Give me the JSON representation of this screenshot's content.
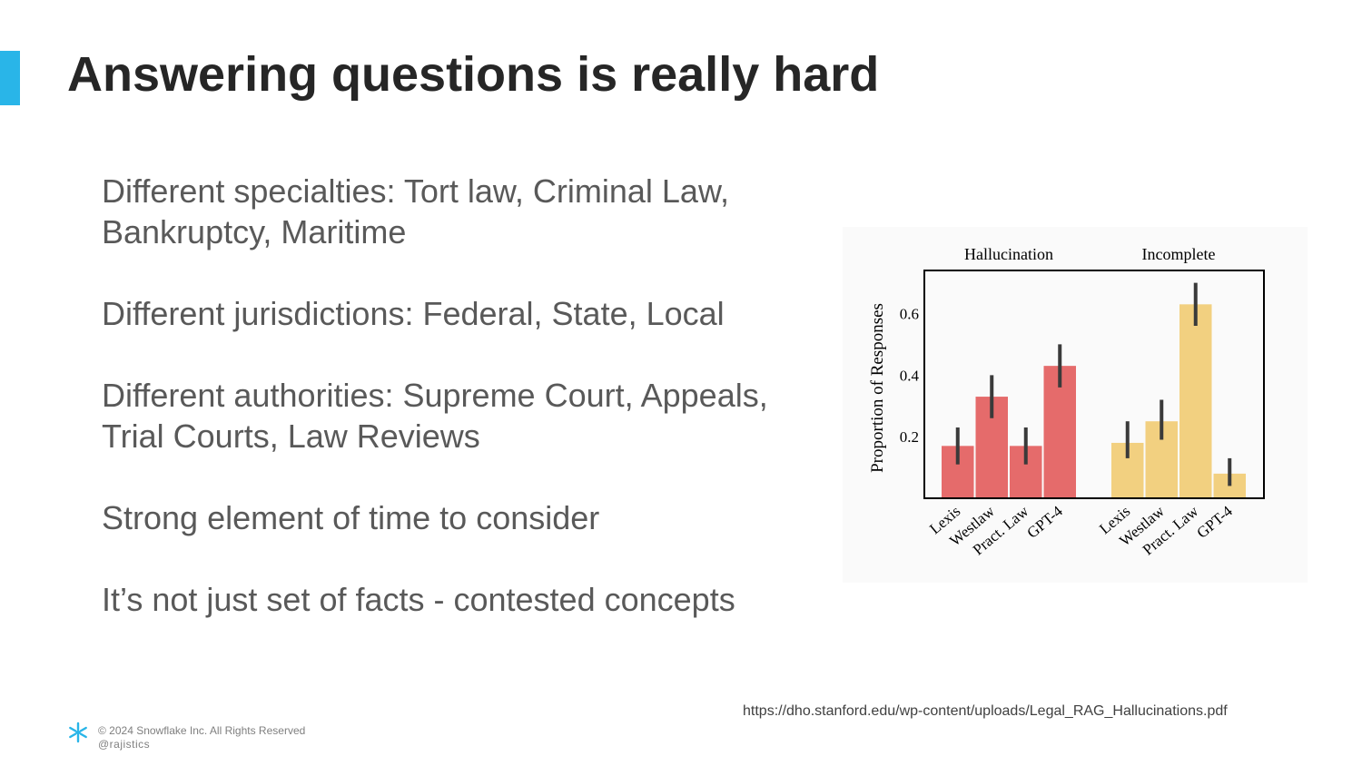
{
  "slide": {
    "title": "Answering questions is really hard",
    "bullets": [
      "Different specialties: Tort law, Criminal Law, Bankruptcy, Maritime",
      "Different jurisdictions: Federal, State, Local",
      "Different authorities: Supreme Court, Appeals, Trial Courts, Law Reviews",
      "Strong element of time to consider",
      "It’s not just set of facts - contested concepts"
    ],
    "accent_color": "#29B5E8",
    "source_url": "https://dho.stanford.edu/wp-content/uploads/Legal_RAG_Hallucinations.pdf"
  },
  "footer": {
    "copyright": "© 2024 Snowflake Inc. All Rights Reserved",
    "handle": "@rajistics",
    "logo_icon": "snowflake-icon"
  },
  "chart_data": {
    "type": "bar",
    "title": "",
    "ylabel": "Proportion of Responses",
    "xlabel": "",
    "ylim": [
      0,
      0.74
    ],
    "yticks": [
      0.2,
      0.4,
      0.6
    ],
    "grid": false,
    "groups": [
      {
        "name": "Hallucination",
        "color": "#E56B6B",
        "categories": [
          "Lexis",
          "Westlaw",
          "Pract. Law",
          "GPT-4"
        ],
        "values": [
          0.17,
          0.33,
          0.17,
          0.43
        ],
        "error_low": [
          0.11,
          0.26,
          0.11,
          0.36
        ],
        "error_high": [
          0.23,
          0.4,
          0.23,
          0.5
        ]
      },
      {
        "name": "Incomplete",
        "color": "#F2D080",
        "categories": [
          "Lexis",
          "Westlaw",
          "Pract. Law",
          "GPT-4"
        ],
        "values": [
          0.18,
          0.25,
          0.63,
          0.08
        ],
        "error_low": [
          0.13,
          0.19,
          0.56,
          0.04
        ],
        "error_high": [
          0.25,
          0.32,
          0.7,
          0.13
        ]
      }
    ]
  }
}
